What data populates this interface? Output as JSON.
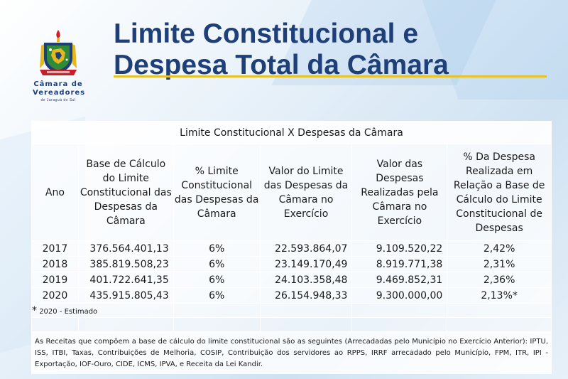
{
  "title": {
    "line1": "Limite Constitucional e",
    "line2": "Despesa Total da Câmara"
  },
  "logo": {
    "line1": "Câmara de",
    "line2": "Vereadores",
    "line3": "de Jaraguá do Sul",
    "banner": "Câmara de Vereadores",
    "colors": {
      "blue": "#1f3f78",
      "green": "#2f8a3a",
      "red": "#c8202a",
      "gold": "#e5b81e"
    }
  },
  "table": {
    "caption": "Limite Constitucional X Despesas da Câmara",
    "headers": [
      "Ano",
      "Base de Cálculo do Limite Constitucional das Despesas da Câmara",
      "% Limite Constitucional das Despesas da Câmara",
      "Valor do Limite das Despesas da Câmara no Exercício",
      "Valor das Despesas Realizadas pela Câmara no Exercício",
      "% Da Despesa Realizada em Relação a Base de Cálculo do Limite Constitucional de Despesas"
    ],
    "rows": [
      [
        "2017",
        "376.564.401,13",
        "6%",
        "22.593.864,07",
        "9.109.520,22",
        "2,42%"
      ],
      [
        "2018",
        "385.819.508,23",
        "6%",
        "23.149.170,49",
        "8.919.771,38",
        "2,31%"
      ],
      [
        "2019",
        "401.722.641,35",
        "6%",
        "24.103.358,48",
        "9.469.852,31",
        "2,36%"
      ],
      [
        "2020",
        "435.915.805,43",
        "6%",
        "26.154.948,33",
        "9.300.000,00",
        "2,13%*"
      ]
    ],
    "note_star": "*",
    "note_text": "2020 - Estimado",
    "footnote": "As Receitas que compõem a base de cálculo do limite constitucional são as seguintes (Arrecadadas pelo Município no Exercício Anterior): IPTU, ISS, ITBI, Taxas, Contribuições de Melhoria, COSIP, Contribuição dos servidores ao RPPS, IRRF arrecadado pelo Município, FPM, ITR, IPI - Exportação, IOF-Ouro, CIDE, ICMS, IPVA, e Receita da Lei Kandir."
  }
}
